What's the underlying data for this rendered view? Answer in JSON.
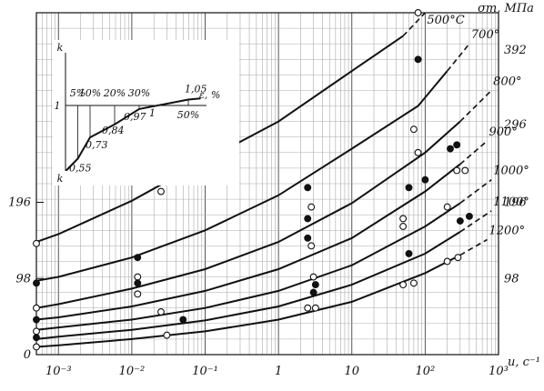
{
  "chart_data": {
    "type": "line",
    "x_scale": "log",
    "xlim": [
      0.0005,
      1000
    ],
    "ylim": [
      0,
      440
    ],
    "grid": true,
    "xlabel": "u, c⁻¹",
    "ylabel": "σт, МПа",
    "x_ticks": [
      {
        "value": 0.001,
        "label": "10⁻³"
      },
      {
        "value": 0.01,
        "label": "10⁻²"
      },
      {
        "value": 0.1,
        "label": "10⁻¹"
      },
      {
        "value": 1,
        "label": "1"
      },
      {
        "value": 10,
        "label": "10"
      },
      {
        "value": 100,
        "label": "10²"
      },
      {
        "value": 1000,
        "label": "10³"
      }
    ],
    "y_ticks_left": [
      {
        "value": 0,
        "label": "0"
      },
      {
        "value": 98,
        "label": "98"
      },
      {
        "value": 196,
        "label": "196"
      }
    ],
    "y_ticks_right": [
      {
        "value": 98,
        "label": "98"
      },
      {
        "value": 196,
        "label": "196"
      },
      {
        "value": 296,
        "label": "296"
      },
      {
        "value": 392,
        "label": "392"
      }
    ],
    "series": [
      {
        "name": "500°C",
        "x": [
          0.0005,
          0.001,
          0.01,
          0.1,
          1,
          10,
          50,
          100
        ],
        "y": [
          145,
          155,
          198,
          250,
          300,
          365,
          410,
          440
        ]
      },
      {
        "name": "700°",
        "x": [
          0.0005,
          0.001,
          0.01,
          0.1,
          1,
          10,
          80,
          200,
          400
        ],
        "y": [
          95,
          100,
          125,
          160,
          205,
          265,
          320,
          365,
          400
        ]
      },
      {
        "name": "800°",
        "x": [
          0.0005,
          0.001,
          0.01,
          0.1,
          1,
          10,
          100,
          300,
          800
        ],
        "y": [
          60,
          65,
          85,
          110,
          145,
          195,
          260,
          300,
          340
        ]
      },
      {
        "name": "900°",
        "x": [
          0.0005,
          0.001,
          0.01,
          0.1,
          1,
          10,
          100,
          300,
          700
        ],
        "y": [
          45,
          48,
          62,
          82,
          110,
          150,
          210,
          245,
          275
        ]
      },
      {
        "name": "1000°",
        "x": [
          0.0005,
          0.001,
          0.01,
          0.1,
          1,
          10,
          100,
          300,
          800
        ],
        "y": [
          32,
          35,
          45,
          60,
          82,
          115,
          165,
          195,
          225
        ]
      },
      {
        "name": "1100°",
        "x": [
          0.0005,
          0.001,
          0.01,
          0.1,
          1,
          10,
          100,
          300,
          800
        ],
        "y": [
          20,
          23,
          32,
          44,
          62,
          90,
          130,
          158,
          185
        ]
      },
      {
        "name": "1200°",
        "x": [
          0.0005,
          0.001,
          0.01,
          0.1,
          1,
          10,
          100,
          300,
          700
        ],
        "y": [
          10,
          12,
          20,
          30,
          45,
          68,
          105,
          128,
          148
        ]
      }
    ],
    "points": [
      {
        "x": 0.0005,
        "y": 143,
        "filled": false
      },
      {
        "x": 0.025,
        "y": 210,
        "filled": false
      },
      {
        "x": 2.5,
        "y": 215,
        "filled": true
      },
      {
        "x": 80,
        "y": 380,
        "filled": true
      },
      {
        "x": 80,
        "y": 440,
        "filled": false
      },
      {
        "x": 0.0005,
        "y": 92,
        "filled": true
      },
      {
        "x": 0.012,
        "y": 125,
        "filled": true
      },
      {
        "x": 2.8,
        "y": 190,
        "filled": false
      },
      {
        "x": 70,
        "y": 290,
        "filled": false
      },
      {
        "x": 220,
        "y": 265,
        "filled": true
      },
      {
        "x": 270,
        "y": 270,
        "filled": true
      },
      {
        "x": 0.0005,
        "y": 60,
        "filled": false
      },
      {
        "x": 0.012,
        "y": 100,
        "filled": false
      },
      {
        "x": 2.5,
        "y": 175,
        "filled": true
      },
      {
        "x": 80,
        "y": 260,
        "filled": false
      },
      {
        "x": 270,
        "y": 237,
        "filled": false
      },
      {
        "x": 350,
        "y": 237,
        "filled": false
      },
      {
        "x": 0.0005,
        "y": 45,
        "filled": true
      },
      {
        "x": 0.012,
        "y": 92,
        "filled": true
      },
      {
        "x": 2.5,
        "y": 150,
        "filled": true
      },
      {
        "x": 60,
        "y": 215,
        "filled": true
      },
      {
        "x": 100,
        "y": 225,
        "filled": true
      },
      {
        "x": 0.0005,
        "y": 30,
        "filled": false
      },
      {
        "x": 0.012,
        "y": 78,
        "filled": false
      },
      {
        "x": 2.8,
        "y": 140,
        "filled": false
      },
      {
        "x": 50,
        "y": 175,
        "filled": false
      },
      {
        "x": 200,
        "y": 190,
        "filled": false
      },
      {
        "x": 0.0005,
        "y": 22,
        "filled": true
      },
      {
        "x": 0.025,
        "y": 55,
        "filled": false
      },
      {
        "x": 3,
        "y": 100,
        "filled": false
      },
      {
        "x": 3.2,
        "y": 90,
        "filled": true
      },
      {
        "x": 50,
        "y": 165,
        "filled": false
      },
      {
        "x": 0.0005,
        "y": 10,
        "filled": false
      },
      {
        "x": 0.05,
        "y": 45,
        "filled": true
      },
      {
        "x": 3,
        "y": 80,
        "filled": true
      },
      {
        "x": 60,
        "y": 130,
        "filled": true
      },
      {
        "x": 300,
        "y": 172,
        "filled": true
      },
      {
        "x": 400,
        "y": 178,
        "filled": true
      },
      {
        "x": 0.03,
        "y": 25,
        "filled": false
      },
      {
        "x": 2.5,
        "y": 60,
        "filled": false
      },
      {
        "x": 3.2,
        "y": 60,
        "filled": false
      },
      {
        "x": 50,
        "y": 90,
        "filled": false
      },
      {
        "x": 70,
        "y": 92,
        "filled": false
      },
      {
        "x": 200,
        "y": 120,
        "filled": false
      },
      {
        "x": 280,
        "y": 125,
        "filled": false
      }
    ],
    "inset": {
      "type": "line",
      "xlabel": "ε, %",
      "ylabel": "k",
      "bottom_label": "k",
      "y_marker": "1",
      "x_labels": [
        "5%",
        "10%",
        "20%",
        "30%",
        "50%"
      ],
      "x_values": [
        5,
        10,
        20,
        30,
        50
      ],
      "k_values": [
        0.55,
        0.73,
        0.84,
        0.97,
        1.05
      ],
      "value_labels": [
        "0,55",
        "0,73",
        "0,84",
        "0,97",
        "1",
        "1,05"
      ]
    }
  }
}
